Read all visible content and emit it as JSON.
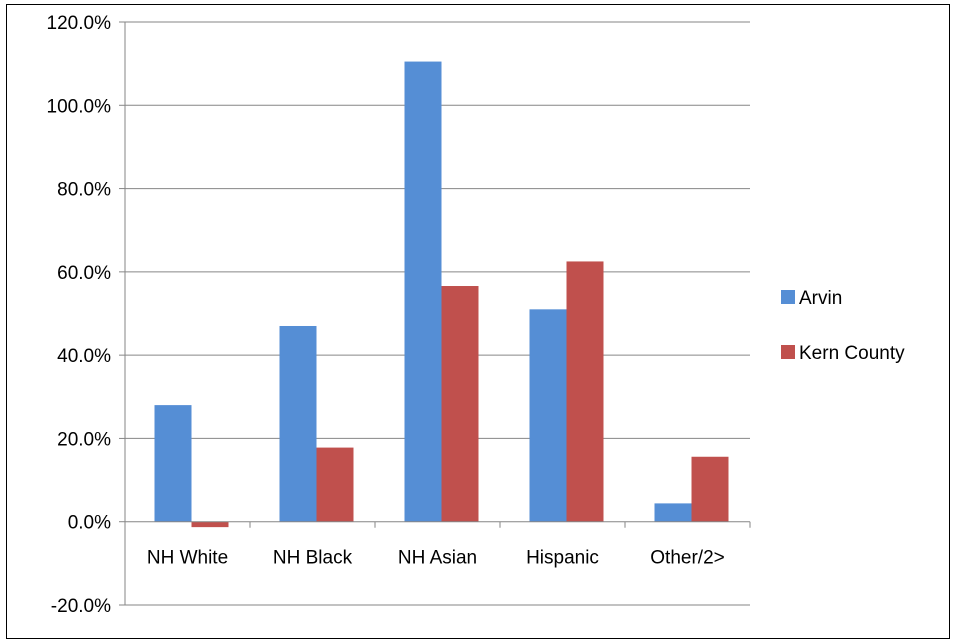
{
  "chart_data": {
    "type": "bar",
    "categories": [
      "NH White",
      "NH Black",
      "NH Asian",
      "Hispanic",
      "Other/2>"
    ],
    "series": [
      {
        "name": "Arvin",
        "values": [
          28.0,
          47.0,
          110.5,
          51.0,
          4.4
        ],
        "color": "#558ED5"
      },
      {
        "name": "Kern County",
        "values": [
          -1.3,
          17.8,
          56.6,
          62.5,
          15.6
        ],
        "color": "#C0504D"
      }
    ],
    "ylim": [
      -20,
      120
    ],
    "yticks": [
      {
        "value": -20,
        "label": "-20.0%"
      },
      {
        "value": 0,
        "label": "0.0%"
      },
      {
        "value": 20,
        "label": "20.0%"
      },
      {
        "value": 40,
        "label": "40.0%"
      },
      {
        "value": 60,
        "label": "60.0%"
      },
      {
        "value": 80,
        "label": "80.0%"
      },
      {
        "value": 100,
        "label": "100.0%"
      },
      {
        "value": 120,
        "label": "120.0%"
      }
    ],
    "grid": true,
    "legend_position": "right",
    "gridline_color": "#868686"
  }
}
